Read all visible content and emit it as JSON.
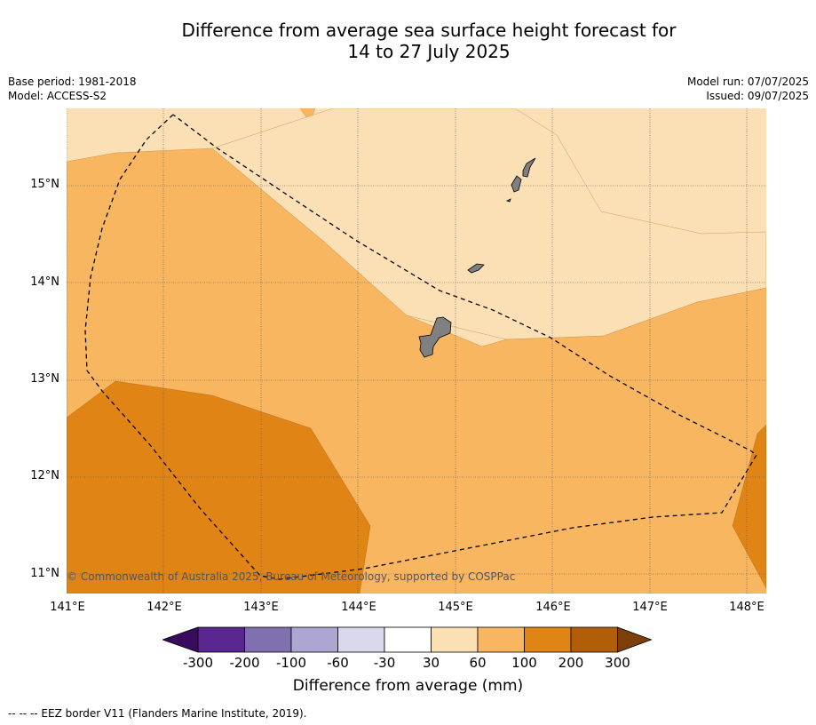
{
  "title_line1": "Difference from average sea surface height forecast for",
  "title_line2": "14 to 27 July 2025",
  "base_period": "Base period: 1981-2018",
  "model": "Model: ACCESS-S2",
  "model_run": "Model run: 07/07/2025",
  "issued": "Issued: 09/07/2025",
  "copyright": "© Commonwealth of Australia 2025, Bureau of Meteorology, supported by COSPPac",
  "lat_labels": [
    "15°N",
    "14°N",
    "13°N",
    "12°N",
    "11°N"
  ],
  "lon_labels": [
    "141°E",
    "142°E",
    "143°E",
    "144°E",
    "145°E",
    "146°E",
    "147°E",
    "148°E"
  ],
  "colorbar": {
    "ticks": [
      "-300",
      "-200",
      "-100",
      "-60",
      "-30",
      "30",
      "60",
      "100",
      "200",
      "300"
    ],
    "label": "Difference from average (mm)",
    "colors": [
      "#3a0a5e",
      "#5a2790",
      "#8070b0",
      "#aea6d2",
      "#d9d8ec",
      "#ffffff",
      "#fce0b5",
      "#f9b661",
      "#e08416",
      "#b25d08",
      "#7d3f0a"
    ]
  },
  "footer": "-- -- -- EEZ border V11 (Flanders Marine Institute, 2019)."
}
